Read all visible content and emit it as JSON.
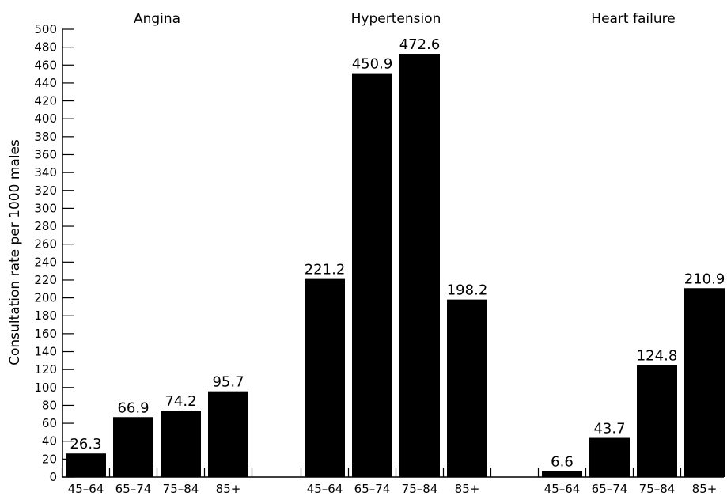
{
  "chart_data": {
    "type": "bar",
    "title": "",
    "xlabel": "",
    "ylabel": "Consultation rate per 1000 males",
    "ylim": [
      0,
      500
    ],
    "yticks": [
      0,
      20,
      40,
      60,
      80,
      100,
      120,
      140,
      160,
      180,
      200,
      220,
      240,
      260,
      280,
      300,
      320,
      340,
      360,
      380,
      400,
      420,
      440,
      460,
      480,
      500
    ],
    "categories": [
      "45–64",
      "65–74",
      "75–84",
      "85+"
    ],
    "groups": [
      {
        "name": "Angina",
        "values": [
          26.3,
          66.9,
          74.2,
          95.7
        ],
        "value_labels": [
          "26.3",
          "66.9",
          "74.2",
          "95.7"
        ]
      },
      {
        "name": "Hypertension",
        "values": [
          221.2,
          450.9,
          472.6,
          198.2
        ],
        "value_labels": [
          "221.2",
          "450.9",
          "472.6",
          "198.2"
        ]
      },
      {
        "name": "Heart failure",
        "values": [
          6.6,
          43.7,
          124.8,
          210.9
        ],
        "value_labels": [
          "6.6",
          "43.7",
          "124.8",
          "210.9"
        ]
      }
    ],
    "bar_color": "#000000",
    "grid": false,
    "legend": "none"
  }
}
